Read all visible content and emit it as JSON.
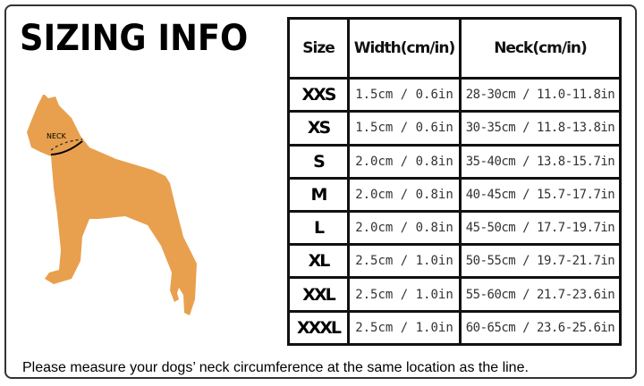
{
  "title": "SIZING INFO",
  "dog_label": "NECK",
  "colors": {
    "dog": "#E8A04E",
    "border": "#111111"
  },
  "table": {
    "headers": [
      "Size",
      "Width(cm/in)",
      "Neck(cm/in)"
    ],
    "rows": [
      {
        "size": "XXS",
        "width": "1.5cm / 0.6in",
        "neck": "28-30cm / 11.0-11.8in"
      },
      {
        "size": "XS",
        "width": "1.5cm / 0.6in",
        "neck": "30-35cm / 11.8-13.8in"
      },
      {
        "size": "S",
        "width": "2.0cm / 0.8in",
        "neck": "35-40cm / 13.8-15.7in"
      },
      {
        "size": "M",
        "width": "2.0cm / 0.8in",
        "neck": "40-45cm / 15.7-17.7in"
      },
      {
        "size": "L",
        "width": "2.0cm / 0.8in",
        "neck": "45-50cm / 17.7-19.7in"
      },
      {
        "size": "XL",
        "width": "2.5cm / 1.0in",
        "neck": "50-55cm / 19.7-21.7in"
      },
      {
        "size": "XXL",
        "width": "2.5cm / 1.0in",
        "neck": "55-60cm / 21.7-23.6in"
      },
      {
        "size": "XXXL",
        "width": "2.5cm / 1.0in",
        "neck": "60-65cm / 23.6-25.6in"
      }
    ]
  },
  "note": "Please measure your dogs’  neck circumference at the same location as the line."
}
